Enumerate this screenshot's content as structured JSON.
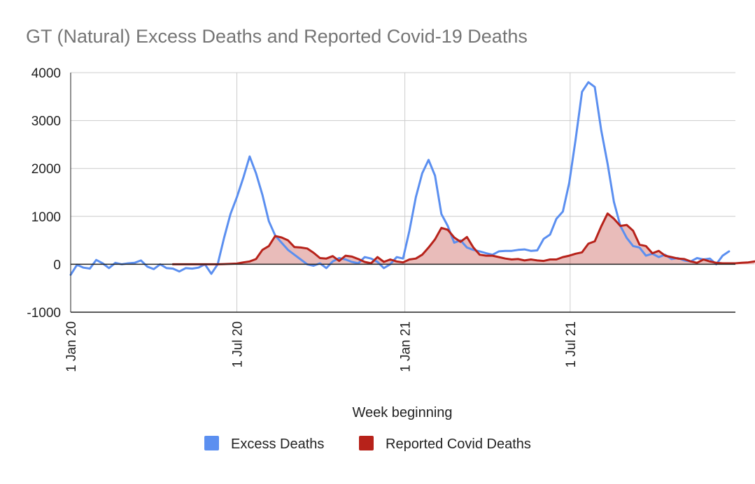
{
  "chart_data": {
    "type": "line",
    "title": "GT (Natural) Excess Deaths and Reported Covid-19 Deaths",
    "xlabel": "Week beginning",
    "ylabel": "",
    "ylim": [
      -1000,
      4000
    ],
    "yticks": [
      "4000",
      "3000",
      "2000",
      "1000",
      "0",
      "-1000"
    ],
    "xticks": [
      "1 Jan 20",
      "1 Jul 20",
      "1 Jan 21",
      "1 Jul 21"
    ],
    "grid": true,
    "legend_position": "bottom",
    "x_start": "2020-01-01",
    "x_unit": "week",
    "series": [
      {
        "name": "Excess Deaths",
        "color": "#5b8ff0",
        "area": false,
        "start_week": 0,
        "values": [
          -220,
          -10,
          -70,
          -90,
          90,
          20,
          -80,
          30,
          0,
          20,
          30,
          80,
          -50,
          -100,
          0,
          -80,
          -90,
          -150,
          -80,
          -90,
          -70,
          0,
          -200,
          0,
          550,
          1050,
          1400,
          1800,
          2250,
          1900,
          1450,
          900,
          600,
          450,
          300,
          200,
          100,
          0,
          -30,
          20,
          -80,
          60,
          130,
          100,
          50,
          20,
          150,
          120,
          50,
          -80,
          0,
          150,
          120,
          700,
          1400,
          1900,
          2180,
          1850,
          1050,
          800,
          450,
          500,
          350,
          300,
          270,
          230,
          200,
          270,
          280,
          280,
          300,
          310,
          280,
          290,
          530,
          620,
          950,
          1100,
          1700,
          2600,
          3600,
          3800,
          3700,
          2800,
          2100,
          1300,
          800,
          550,
          380,
          350,
          180,
          220,
          150,
          200,
          110,
          130,
          80,
          60,
          130,
          100,
          120,
          0,
          180,
          270
        ]
      },
      {
        "name": "Reported Covid Deaths",
        "color": "#b7221a",
        "area": true,
        "start_week": 16,
        "values": [
          0,
          0,
          0,
          0,
          0,
          0,
          0,
          0,
          5,
          10,
          15,
          40,
          60,
          110,
          300,
          380,
          590,
          560,
          500,
          360,
          350,
          330,
          240,
          130,
          120,
          170,
          70,
          180,
          160,
          110,
          50,
          20,
          150,
          50,
          100,
          60,
          40,
          100,
          120,
          200,
          350,
          520,
          760,
          720,
          560,
          470,
          570,
          350,
          200,
          180,
          180,
          150,
          120,
          100,
          110,
          80,
          100,
          80,
          70,
          100,
          100,
          150,
          180,
          220,
          250,
          430,
          480,
          790,
          1060,
          950,
          800,
          820,
          700,
          410,
          380,
          230,
          280,
          180,
          150,
          120,
          110,
          60,
          30,
          100,
          60,
          30,
          20,
          20,
          20,
          30,
          40,
          60
        ]
      }
    ]
  }
}
